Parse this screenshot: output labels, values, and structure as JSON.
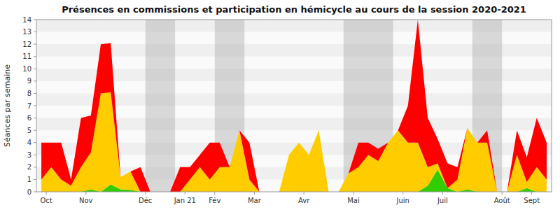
{
  "chart_data": {
    "type": "area",
    "title": "Présences en commissions et participation en hémicycle au cours de la session 2020-2021",
    "y_label": "Séances par semaine",
    "stacked": true,
    "grid": false,
    "x": [
      0,
      1,
      2,
      3,
      4,
      5,
      6,
      7,
      8,
      9,
      10,
      11,
      12,
      13,
      14,
      15,
      16,
      17,
      18,
      19,
      20,
      21,
      22,
      23,
      24,
      25,
      26,
      27,
      28,
      29,
      30,
      31,
      32,
      33,
      34,
      35,
      36,
      37,
      38,
      39,
      40,
      41,
      42,
      43,
      44,
      45,
      46,
      47,
      48,
      49,
      50,
      51
    ],
    "xlim": [
      -0.5,
      51.5
    ],
    "xticks": [
      {
        "value": 0.5,
        "label": "Oct"
      },
      {
        "value": 4.5,
        "label": "Nov"
      },
      {
        "value": 10.5,
        "label": "Déc"
      },
      {
        "value": 14.5,
        "label": "Jan 21"
      },
      {
        "value": 17.5,
        "label": "Fév"
      },
      {
        "value": 21.5,
        "label": "Mar"
      },
      {
        "value": 26.5,
        "label": "Avr"
      },
      {
        "value": 31.5,
        "label": "Mai"
      },
      {
        "value": 36.5,
        "label": "Juin"
      },
      {
        "value": 40.5,
        "label": "Juil"
      },
      {
        "value": 46.5,
        "label": "Août"
      },
      {
        "value": 49.5,
        "label": "Sept"
      }
    ],
    "ylim": [
      0,
      14
    ],
    "yticks": [
      0,
      1,
      2,
      3,
      4,
      5,
      6,
      7,
      8,
      9,
      10,
      11,
      12,
      13,
      14
    ],
    "bands": [
      [
        10.5,
        13.5
      ],
      [
        17.5,
        20.5
      ],
      [
        30.5,
        35.5
      ],
      [
        43.5,
        46.5
      ]
    ],
    "hline": 14,
    "series": [
      {
        "color": "#33cc00",
        "values": [
          0,
          0,
          0,
          0,
          0,
          0.2,
          0,
          0.6,
          0.2,
          0.15,
          0,
          0,
          0,
          0,
          0,
          0,
          0,
          0,
          0,
          0,
          0,
          0,
          0,
          0,
          0,
          0,
          0,
          0,
          0,
          0,
          0,
          0,
          0,
          0,
          0,
          0,
          0,
          0,
          0,
          0.5,
          1.8,
          0.3,
          0,
          0.2,
          0,
          0,
          0,
          0,
          0,
          0.3,
          0,
          0
        ]
      },
      {
        "color": "#ffcc00",
        "values": [
          1,
          2,
          1,
          0.5,
          2,
          3,
          8,
          7.5,
          1,
          1.5,
          0,
          0,
          0,
          0,
          0,
          1,
          2,
          1,
          2,
          2,
          5,
          1,
          0,
          0,
          0,
          3,
          4,
          3,
          5,
          0,
          0,
          1.5,
          2,
          3,
          2.5,
          4,
          5,
          4,
          4,
          1.5,
          0.5,
          0,
          1,
          5,
          4,
          4,
          0,
          0,
          3,
          0.5,
          2,
          1
        ]
      },
      {
        "color": "#ff0000",
        "values": [
          3,
          2,
          3,
          0.5,
          4,
          3,
          4,
          4,
          0,
          0,
          2,
          0,
          0,
          0,
          2,
          1,
          1,
          3,
          2,
          0,
          0,
          3,
          0,
          0,
          0,
          0,
          0,
          0,
          0,
          0,
          0,
          0,
          2,
          1,
          1,
          0,
          0,
          3,
          10,
          4,
          2,
          2,
          1,
          0,
          0,
          1,
          0,
          0,
          2,
          2,
          4,
          3
        ]
      }
    ]
  }
}
